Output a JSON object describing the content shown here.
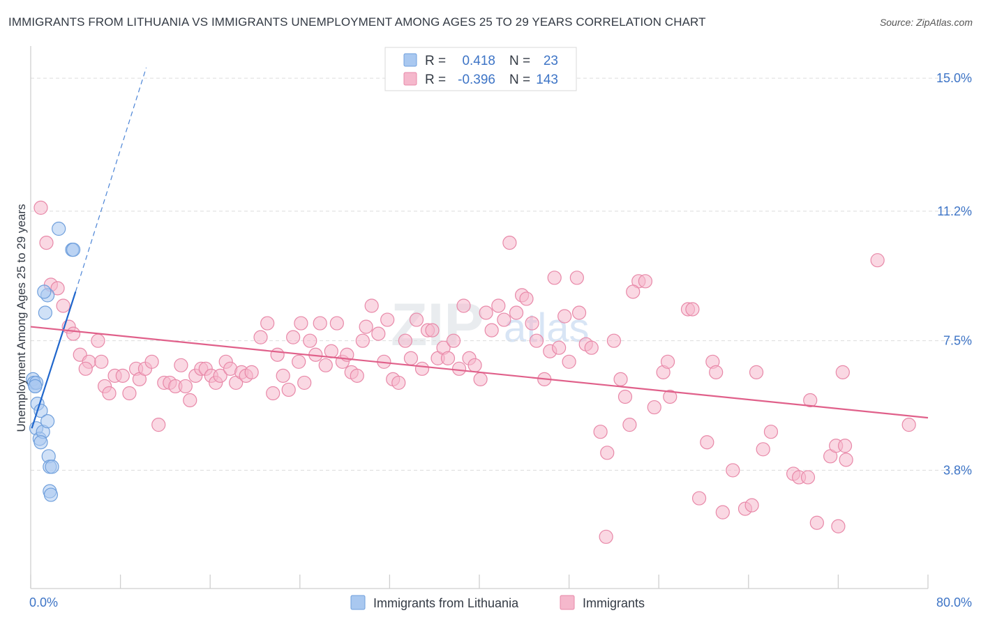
{
  "title": "IMMIGRANTS FROM LITHUANIA VS IMMIGRANTS UNEMPLOYMENT AMONG AGES 25 TO 29 YEARS CORRELATION CHART",
  "source": "Source: ZipAtlas.com",
  "watermark": {
    "part1": "ZIP",
    "part2": "atlas"
  },
  "colors": {
    "blue_fill": "#a9c8f0",
    "blue_stroke": "#6f9fdc",
    "blue_line": "#1f66cc",
    "pink_fill": "#f5b8cc",
    "pink_stroke": "#e888a8",
    "pink_line": "#e0608a",
    "axis_value": "#3d74c6"
  },
  "legend_top": [
    {
      "r_label": "R =",
      "r_value": "0.418",
      "n_label": "N =",
      "n_value": "23"
    },
    {
      "r_label": "R =",
      "r_value": "-0.396",
      "n_label": "N =",
      "n_value": "143"
    }
  ],
  "legend_bottom": [
    "Immigrants from Lithuania",
    "Immigrants"
  ],
  "chart_data": {
    "type": "scatter",
    "title": "IMMIGRANTS FROM LITHUANIA VS IMMIGRANTS UNEMPLOYMENT AMONG AGES 25 TO 29 YEARS CORRELATION CHART",
    "xlabel": "",
    "ylabel": "Unemployment Among Ages 25 to 29 years",
    "xlim": [
      0,
      80
    ],
    "ylim": [
      0.9,
      15.8
    ],
    "x_tick_labels": [
      "0.0%",
      "80.0%"
    ],
    "y_ticks": [
      3.8,
      7.5,
      11.2,
      15.0
    ],
    "y_tick_labels": [
      "3.8%",
      "7.5%",
      "11.2%",
      "15.0%"
    ],
    "grid": "horizontal dashed",
    "legend_position": "top-center",
    "series": [
      {
        "name": "Immigrants from Lithuania",
        "r": 0.418,
        "n": 23,
        "trend": {
          "x": [
            0.1,
            4.0
          ],
          "y": [
            5.0,
            8.9
          ],
          "dashed_extension": {
            "x": [
              4.0,
              10.3
            ],
            "y": [
              8.9,
              15.3
            ]
          }
        },
        "points": [
          [
            0.2,
            6.4
          ],
          [
            0.3,
            6.3
          ],
          [
            0.4,
            6.2
          ],
          [
            0.5,
            6.3
          ],
          [
            0.6,
            5.7
          ],
          [
            0.5,
            5.0
          ],
          [
            0.9,
            5.5
          ],
          [
            0.8,
            4.7
          ],
          [
            1.1,
            4.9
          ],
          [
            0.9,
            4.6
          ],
          [
            1.5,
            5.2
          ],
          [
            1.6,
            4.2
          ],
          [
            1.7,
            3.9
          ],
          [
            1.9,
            3.9
          ],
          [
            1.7,
            3.2
          ],
          [
            1.8,
            3.1
          ],
          [
            1.5,
            8.8
          ],
          [
            1.2,
            8.9
          ],
          [
            1.3,
            8.3
          ],
          [
            2.5,
            10.7
          ],
          [
            3.7,
            10.1
          ],
          [
            3.8,
            10.1
          ],
          [
            0.4,
            6.2
          ]
        ]
      },
      {
        "name": "Immigrants",
        "r": -0.396,
        "n": 143,
        "trend": {
          "x": [
            0,
            80
          ],
          "y": [
            7.9,
            5.3
          ]
        },
        "points": [
          [
            0.9,
            11.3
          ],
          [
            1.4,
            10.3
          ],
          [
            1.8,
            9.1
          ],
          [
            2.4,
            9.0
          ],
          [
            2.9,
            8.5
          ],
          [
            3.4,
            7.9
          ],
          [
            3.8,
            7.7
          ],
          [
            4.4,
            7.1
          ],
          [
            5.2,
            6.9
          ],
          [
            4.9,
            6.7
          ],
          [
            6.0,
            7.5
          ],
          [
            6.3,
            6.9
          ],
          [
            6.6,
            6.2
          ],
          [
            7.0,
            6.0
          ],
          [
            7.5,
            6.5
          ],
          [
            8.2,
            6.5
          ],
          [
            8.8,
            6.0
          ],
          [
            9.4,
            6.7
          ],
          [
            9.7,
            6.4
          ],
          [
            10.2,
            6.7
          ],
          [
            10.8,
            6.9
          ],
          [
            11.4,
            5.1
          ],
          [
            11.9,
            6.3
          ],
          [
            12.4,
            6.3
          ],
          [
            12.9,
            6.2
          ],
          [
            13.4,
            6.8
          ],
          [
            13.8,
            6.2
          ],
          [
            14.2,
            5.8
          ],
          [
            14.7,
            6.5
          ],
          [
            15.2,
            6.7
          ],
          [
            15.6,
            6.7
          ],
          [
            16.1,
            6.5
          ],
          [
            16.5,
            6.3
          ],
          [
            16.9,
            6.5
          ],
          [
            17.4,
            6.9
          ],
          [
            17.8,
            6.7
          ],
          [
            18.3,
            6.3
          ],
          [
            18.8,
            6.6
          ],
          [
            19.2,
            6.5
          ],
          [
            19.7,
            6.6
          ],
          [
            20.5,
            7.6
          ],
          [
            21.1,
            8.0
          ],
          [
            21.6,
            6.0
          ],
          [
            22.0,
            7.1
          ],
          [
            22.5,
            6.5
          ],
          [
            23.0,
            6.1
          ],
          [
            23.4,
            7.6
          ],
          [
            23.9,
            6.9
          ],
          [
            24.4,
            6.3
          ],
          [
            24.9,
            7.5
          ],
          [
            25.4,
            7.1
          ],
          [
            25.8,
            8.0
          ],
          [
            26.3,
            6.8
          ],
          [
            26.8,
            7.2
          ],
          [
            27.3,
            8.0
          ],
          [
            27.8,
            6.9
          ],
          [
            28.2,
            7.1
          ],
          [
            28.6,
            6.6
          ],
          [
            29.1,
            6.5
          ],
          [
            29.6,
            7.5
          ],
          [
            29.9,
            7.9
          ],
          [
            30.4,
            8.5
          ],
          [
            31.0,
            7.7
          ],
          [
            31.5,
            6.9
          ],
          [
            31.8,
            8.1
          ],
          [
            32.3,
            6.4
          ],
          [
            32.8,
            6.3
          ],
          [
            33.4,
            7.5
          ],
          [
            33.9,
            7.0
          ],
          [
            34.4,
            8.1
          ],
          [
            34.9,
            6.7
          ],
          [
            35.4,
            7.8
          ],
          [
            35.8,
            7.8
          ],
          [
            36.3,
            7.0
          ],
          [
            36.8,
            7.3
          ],
          [
            37.2,
            7.0
          ],
          [
            37.7,
            7.5
          ],
          [
            38.2,
            6.7
          ],
          [
            38.6,
            8.5
          ],
          [
            39.1,
            7.0
          ],
          [
            39.6,
            6.8
          ],
          [
            40.1,
            6.4
          ],
          [
            40.6,
            8.3
          ],
          [
            41.1,
            7.8
          ],
          [
            41.7,
            8.5
          ],
          [
            42.2,
            8.1
          ],
          [
            42.7,
            10.3
          ],
          [
            43.3,
            8.3
          ],
          [
            43.8,
            8.8
          ],
          [
            44.2,
            8.7
          ],
          [
            44.7,
            8.0
          ],
          [
            45.1,
            7.5
          ],
          [
            45.8,
            6.4
          ],
          [
            46.3,
            7.2
          ],
          [
            46.7,
            9.3
          ],
          [
            47.1,
            7.3
          ],
          [
            47.6,
            8.2
          ],
          [
            48.0,
            6.9
          ],
          [
            48.7,
            9.3
          ],
          [
            48.9,
            8.3
          ],
          [
            49.5,
            7.4
          ],
          [
            50.0,
            7.3
          ],
          [
            50.8,
            4.9
          ],
          [
            51.4,
            4.3
          ],
          [
            52.0,
            7.5
          ],
          [
            52.6,
            6.4
          ],
          [
            53.0,
            5.9
          ],
          [
            53.4,
            5.1
          ],
          [
            54.2,
            9.2
          ],
          [
            54.8,
            9.2
          ],
          [
            55.6,
            5.6
          ],
          [
            56.4,
            6.6
          ],
          [
            56.8,
            6.9
          ],
          [
            57.0,
            5.9
          ],
          [
            58.6,
            8.4
          ],
          [
            59.0,
            8.4
          ],
          [
            59.6,
            3.0
          ],
          [
            60.3,
            4.6
          ],
          [
            60.8,
            6.9
          ],
          [
            61.1,
            6.6
          ],
          [
            61.7,
            2.6
          ],
          [
            62.6,
            3.8
          ],
          [
            63.7,
            2.7
          ],
          [
            64.3,
            2.8
          ],
          [
            64.7,
            6.6
          ],
          [
            65.3,
            4.4
          ],
          [
            66.0,
            4.9
          ],
          [
            68.0,
            3.7
          ],
          [
            68.5,
            3.6
          ],
          [
            69.3,
            3.6
          ],
          [
            69.5,
            5.8
          ],
          [
            70.1,
            2.3
          ],
          [
            71.3,
            4.2
          ],
          [
            71.8,
            4.5
          ],
          [
            72.0,
            2.2
          ],
          [
            72.4,
            6.6
          ],
          [
            72.6,
            4.5
          ],
          [
            72.7,
            4.1
          ],
          [
            75.5,
            9.8
          ],
          [
            78.3,
            5.1
          ],
          [
            51.3,
            1.9
          ],
          [
            53.7,
            8.9
          ],
          [
            24.1,
            8.0
          ]
        ]
      }
    ]
  }
}
